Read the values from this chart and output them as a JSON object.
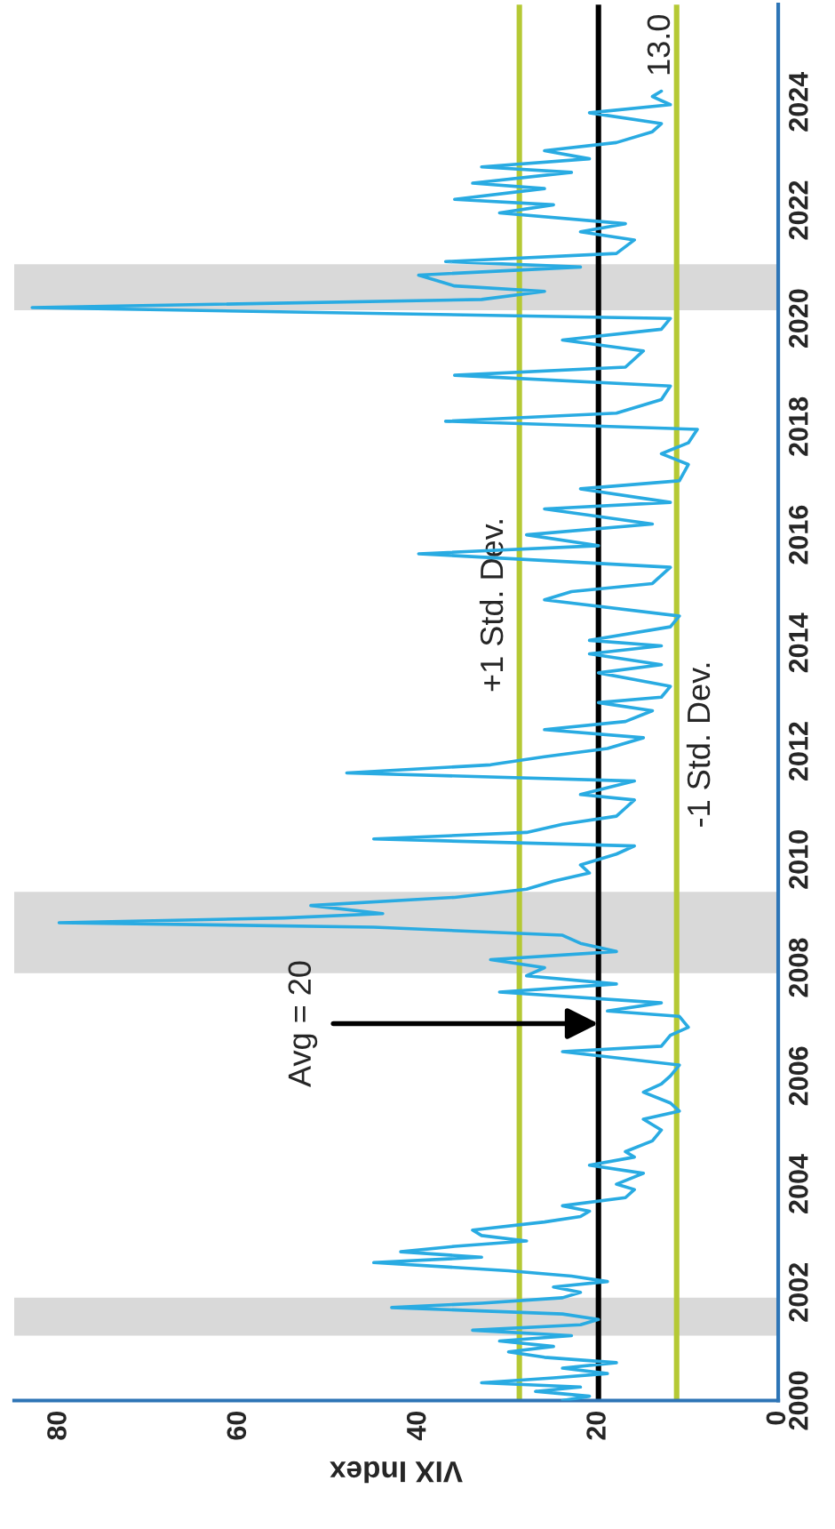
{
  "chart_data": {
    "type": "line",
    "xlabel": "VIX Index",
    "series": [
      {
        "color": "#29abe2",
        "x": [
          24,
          21,
          27,
          22,
          33,
          25,
          19,
          24,
          18,
          26,
          30,
          25,
          31,
          23,
          34,
          22,
          20,
          24,
          43,
          33,
          24,
          22,
          25,
          19,
          23,
          30,
          45,
          33,
          42,
          36,
          28,
          33,
          34,
          26,
          22,
          21,
          24,
          17,
          16,
          18,
          15,
          21,
          16,
          17,
          14,
          13,
          15,
          11,
          12,
          15,
          13,
          12,
          11,
          24,
          13,
          12,
          10,
          11,
          19,
          13,
          31,
          18,
          28,
          26,
          32,
          18,
          22,
          24,
          45,
          80,
          55,
          44,
          52,
          36,
          28,
          25,
          21,
          22,
          18,
          16,
          45,
          28,
          24,
          18,
          17,
          16,
          22,
          16,
          48,
          32,
          26,
          19,
          15,
          26,
          17,
          14,
          20,
          13,
          12,
          20,
          13,
          21,
          13,
          21,
          12,
          11,
          26,
          23,
          14,
          12,
          40,
          20,
          28,
          14,
          26,
          12,
          22,
          11,
          10,
          13,
          10,
          9,
          37,
          18,
          13,
          12,
          36,
          17,
          15,
          24,
          13,
          12,
          83,
          33,
          26,
          36,
          40,
          22,
          37,
          18,
          16,
          22,
          17,
          31,
          25,
          36,
          26,
          34,
          23,
          33,
          21,
          26,
          18,
          14,
          13,
          21,
          12,
          14,
          13
        ],
        "values": [
          2000.0,
          2000.08,
          2000.17,
          2000.25,
          2000.33,
          2000.42,
          2000.5,
          2000.6,
          2000.7,
          2000.8,
          2000.9,
          2001.0,
          2001.1,
          2001.2,
          2001.3,
          2001.4,
          2001.5,
          2001.6,
          2001.72,
          2001.8,
          2001.9,
          2002.0,
          2002.1,
          2002.2,
          2002.3,
          2002.4,
          2002.55,
          2002.65,
          2002.75,
          2002.85,
          2002.95,
          2003.05,
          2003.15,
          2003.3,
          2003.4,
          2003.5,
          2003.6,
          2003.75,
          2003.9,
          2004.0,
          2004.2,
          2004.35,
          2004.5,
          2004.6,
          2004.8,
          2005.0,
          2005.2,
          2005.35,
          2005.5,
          2005.7,
          2005.85,
          2006.0,
          2006.2,
          2006.45,
          2006.55,
          2006.75,
          2006.9,
          2007.1,
          2007.2,
          2007.35,
          2007.55,
          2007.7,
          2007.85,
          2008.0,
          2008.15,
          2008.3,
          2008.45,
          2008.6,
          2008.75,
          2008.83,
          2008.92,
          2009.0,
          2009.15,
          2009.3,
          2009.45,
          2009.6,
          2009.75,
          2009.9,
          2010.1,
          2010.25,
          2010.38,
          2010.5,
          2010.65,
          2010.8,
          2010.95,
          2011.1,
          2011.2,
          2011.45,
          2011.6,
          2011.75,
          2011.9,
          2012.05,
          2012.25,
          2012.4,
          2012.55,
          2012.75,
          2012.9,
          2013.0,
          2013.2,
          2013.45,
          2013.6,
          2013.8,
          2013.95,
          2014.05,
          2014.3,
          2014.5,
          2014.8,
          2014.95,
          2015.1,
          2015.4,
          2015.65,
          2015.8,
          2016.0,
          2016.2,
          2016.48,
          2016.6,
          2016.85,
          2017.0,
          2017.3,
          2017.5,
          2017.7,
          2017.95,
          2018.1,
          2018.25,
          2018.5,
          2018.75,
          2018.95,
          2019.1,
          2019.4,
          2019.6,
          2019.8,
          2020.0,
          2020.2,
          2020.35,
          2020.5,
          2020.6,
          2020.8,
          2020.95,
          2021.05,
          2021.2,
          2021.45,
          2021.6,
          2021.75,
          2021.95,
          2022.1,
          2022.2,
          2022.4,
          2022.5,
          2022.7,
          2022.8,
          2022.95,
          2023.1,
          2023.25,
          2023.45,
          2023.6,
          2023.8,
          2023.95,
          2024.1,
          2024.2
        ]
      }
    ],
    "xlim": [
      85,
      0
    ],
    "xticks": [
      0,
      20,
      40,
      60,
      80
    ],
    "ylim": [
      2000,
      2025.8
    ],
    "yticks": [
      2000,
      2002,
      2004,
      2006,
      2008,
      2010,
      2012,
      2014,
      2016,
      2018,
      2020,
      2022,
      2024
    ],
    "ref_lines": [
      {
        "axis": "x",
        "value": 20,
        "label": "Avg = 20",
        "color": "#000000"
      },
      {
        "axis": "x",
        "value": 28.8,
        "label": "+1 Std. Dev.",
        "color": "#b5c934"
      },
      {
        "axis": "x",
        "value": 11.3,
        "label": "-1 Std. Dev.",
        "color": "#b5c934"
      }
    ],
    "bands": [
      {
        "axis": "y",
        "from": 2001.2,
        "to": 2001.9,
        "color": "#d9d9d9"
      },
      {
        "axis": "y",
        "from": 2007.9,
        "to": 2009.4,
        "color": "#d9d9d9"
      },
      {
        "axis": "y",
        "from": 2020.15,
        "to": 2021.0,
        "color": "#d9d9d9"
      }
    ],
    "annotations": [
      {
        "text": "13.0",
        "x": 13,
        "y": 2024.2
      }
    ],
    "grid": false,
    "legend": false,
    "marker": "none",
    "line_style": "solid"
  }
}
